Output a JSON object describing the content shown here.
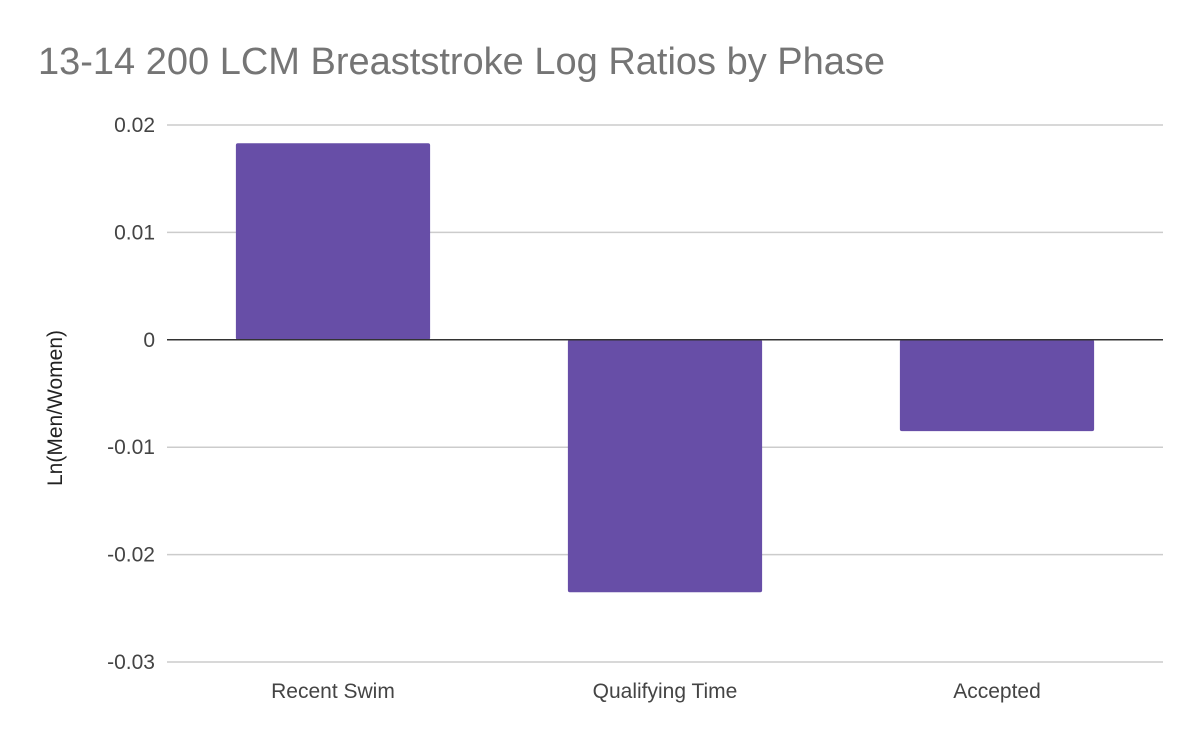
{
  "chart_data": {
    "type": "bar",
    "title": "13-14 200 LCM Breaststroke Log Ratios by Phase",
    "xlabel": "",
    "ylabel": "Ln(Men/Women)",
    "categories": [
      "Recent Swim",
      "Qualifying Time",
      "Accepted"
    ],
    "series": [
      {
        "values": [
          0.0183,
          -0.0235,
          -0.0085
        ]
      }
    ],
    "ylim": [
      -0.03,
      0.02
    ],
    "y_ticks": [
      0.02,
      0.01,
      0,
      -0.01,
      -0.02,
      -0.03
    ],
    "y_tick_labels": [
      "0.02",
      "0.01",
      "0",
      "-0.01",
      "-0.02",
      "-0.03"
    ],
    "grid": true,
    "legend": "none",
    "bar_color": "#674ea7"
  }
}
